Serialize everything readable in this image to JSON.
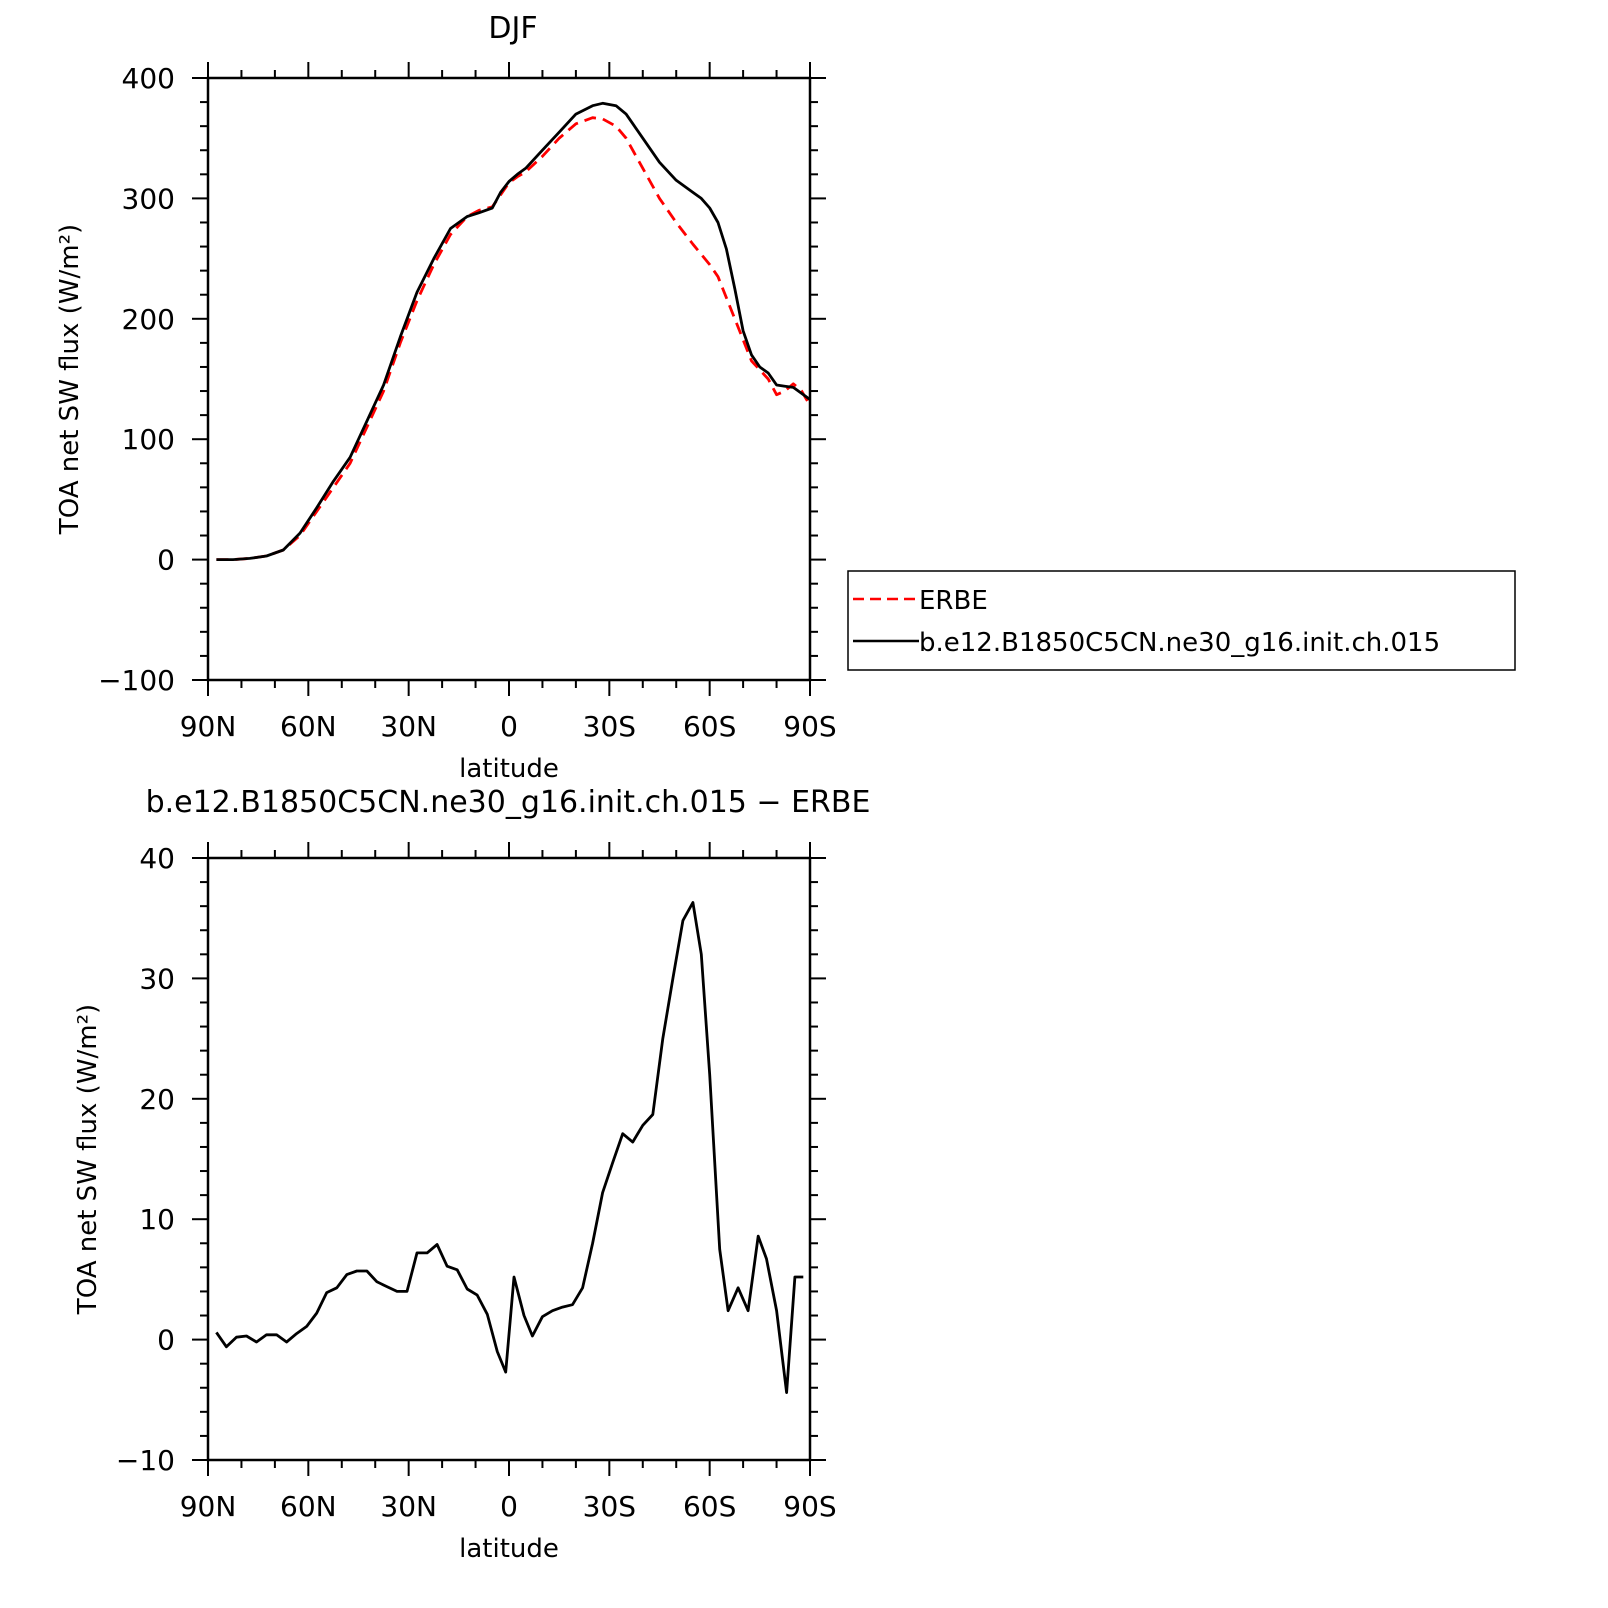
{
  "chart_data": [
    {
      "type": "line",
      "title": "DJF",
      "xlabel": "latitude",
      "ylabel": "TOA net SW flux (W/m²)",
      "xlim": [
        -90,
        90
      ],
      "ylim": [
        -100,
        400
      ],
      "x_ticks": [
        -90,
        -60,
        -30,
        0,
        30,
        60,
        90
      ],
      "x_tick_labels": [
        "90N",
        "60N",
        "30N",
        "0",
        "30S",
        "60S",
        "90S"
      ],
      "y_ticks": [
        -100,
        0,
        100,
        200,
        300,
        400
      ],
      "y_tick_labels": [
        "−100",
        "0",
        "100",
        "200",
        "300",
        "400"
      ],
      "legend": {
        "placement": "right",
        "entries": [
          "ERBE",
          "b.e12.B1850C5CN.ne30_g16.init.ch.015"
        ]
      },
      "series": [
        {
          "name": "ERBE",
          "color": "#ff0000",
          "style": "dashed",
          "x": [
            -87.5,
            -82.5,
            -77.5,
            -72.5,
            -67.5,
            -62.5,
            -57.5,
            -52.5,
            -47.5,
            -42.5,
            -37.5,
            -32.5,
            -27.5,
            -22.5,
            -17.5,
            -12.5,
            -9,
            -5,
            -2.5,
            0,
            2.5,
            5,
            10,
            15,
            20,
            25,
            28,
            32,
            35,
            40,
            45,
            50,
            55,
            60,
            62.5,
            67.5,
            72.5,
            77.5,
            80,
            82.5,
            85,
            87.5,
            90
          ],
          "y": [
            0,
            0,
            1,
            3,
            8,
            20,
            40,
            60,
            80,
            110,
            140,
            180,
            215,
            245,
            270,
            285,
            290,
            293,
            303,
            313,
            318,
            322,
            335,
            350,
            362,
            367,
            366,
            360,
            350,
            325,
            300,
            280,
            262,
            245,
            235,
            200,
            165,
            150,
            137,
            140,
            146,
            140,
            128
          ]
        },
        {
          "name": "b.e12.B1850C5CN.ne30_g16.init.ch.015",
          "color": "#000000",
          "style": "solid",
          "x": [
            -87.5,
            -82.5,
            -77.5,
            -72.5,
            -67.5,
            -62.5,
            -57.5,
            -52.5,
            -47.5,
            -42.5,
            -37.5,
            -32.5,
            -27.5,
            -22.5,
            -17.5,
            -12.5,
            -9,
            -5,
            -2.5,
            0,
            2.5,
            5,
            10,
            15,
            20,
            25,
            28,
            32,
            35,
            40,
            45,
            50,
            55,
            57.5,
            60,
            62.5,
            65,
            67.5,
            70,
            72.5,
            75,
            77.5,
            80,
            82.5,
            85,
            87.5,
            90
          ],
          "y": [
            0,
            0,
            1,
            3,
            8,
            22,
            43,
            65,
            85,
            115,
            145,
            185,
            222,
            250,
            275,
            285,
            288,
            292,
            305,
            314,
            320,
            325,
            340,
            355,
            370,
            377,
            379,
            377,
            370,
            350,
            330,
            315,
            305,
            300,
            292,
            280,
            258,
            225,
            190,
            170,
            160,
            155,
            145,
            144,
            143,
            138,
            133
          ]
        }
      ]
    },
    {
      "type": "line",
      "title": "b.e12.B1850C5CN.ne30_g16.init.ch.015 − ERBE",
      "xlabel": "latitude",
      "ylabel": "TOA net SW flux (W/m²)",
      "xlim": [
        -90,
        90
      ],
      "ylim": [
        -10,
        40
      ],
      "x_ticks": [
        -90,
        -60,
        -30,
        0,
        30,
        60,
        90
      ],
      "x_tick_labels": [
        "90N",
        "60N",
        "30N",
        "0",
        "30S",
        "60S",
        "90S"
      ],
      "y_ticks": [
        -10,
        0,
        10,
        20,
        30,
        40
      ],
      "y_tick_labels": [
        "−10",
        "0",
        "10",
        "20",
        "30",
        "40"
      ],
      "series": [
        {
          "color": "#000000",
          "style": "solid",
          "x": [
            -87.5,
            -84.5,
            -81.5,
            -78.5,
            -75.5,
            -72.5,
            -69.5,
            -66.5,
            -63.5,
            -60.5,
            -57.5,
            -54.5,
            -51.5,
            -48.5,
            -45.5,
            -42.5,
            -39.5,
            -36.5,
            -33.5,
            -30.5,
            -27.5,
            -24.5,
            -21.5,
            -18.5,
            -15.5,
            -12.5,
            -9.5,
            -6.5,
            -3.5,
            -1,
            1.5,
            4.5,
            7,
            10,
            13,
            16,
            19,
            22,
            25,
            28,
            31,
            34,
            37,
            40,
            43,
            46,
            49,
            52,
            55,
            57.5,
            60,
            63,
            65.5,
            68.5,
            71.5,
            74.5,
            77,
            80,
            83,
            85.5,
            88
          ],
          "y": [
            0.6,
            -0.6,
            0.2,
            0.3,
            -0.2,
            0.4,
            0.4,
            -0.2,
            0.5,
            1.1,
            2.2,
            3.9,
            4.3,
            5.4,
            5.7,
            5.7,
            4.8,
            4.4,
            4,
            4,
            7.2,
            7.2,
            7.9,
            6.1,
            5.8,
            4.2,
            3.7,
            2.1,
            -1,
            -2.7,
            5.2,
            2,
            0.3,
            1.9,
            2.4,
            2.7,
            2.9,
            4.3,
            8,
            12.2,
            14.7,
            17.1,
            16.4,
            17.8,
            18.7,
            25,
            30,
            34.8,
            36.3,
            32,
            22,
            7.5,
            2.4,
            4.3,
            2.4,
            8.6,
            6.7,
            2.4,
            -4.4,
            5.2,
            5.2
          ]
        }
      ]
    }
  ]
}
